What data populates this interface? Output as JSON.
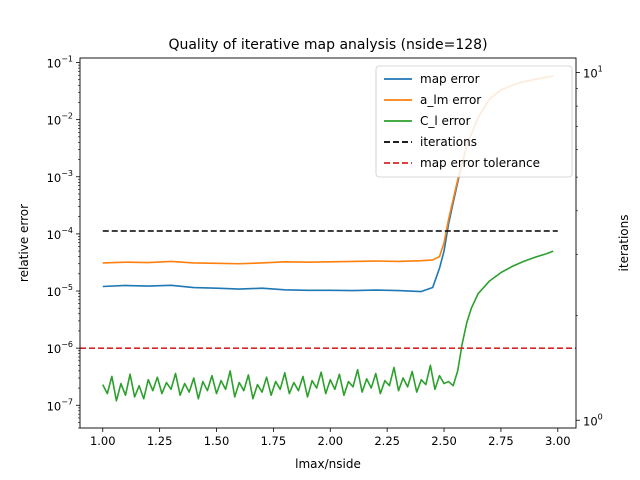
{
  "chart_data": {
    "type": "line",
    "title": "Quality of iterative map analysis (nside=128)",
    "xlabel": "lmax/nside",
    "ylabel": "relative error",
    "y2label": "iterations",
    "xlim": [
      0.9,
      3.08
    ],
    "ylim": [
      4e-08,
      0.12
    ],
    "y2lim": [
      0.95,
      11
    ],
    "yscale": "log",
    "y2scale": "log",
    "xticks": [
      "1.00",
      "1.25",
      "1.50",
      "1.75",
      "2.00",
      "2.25",
      "2.50",
      "2.75",
      "3.00"
    ],
    "yticks": [
      {
        "base": "10",
        "exp": "−7"
      },
      {
        "base": "10",
        "exp": "−6"
      },
      {
        "base": "10",
        "exp": "−5"
      },
      {
        "base": "10",
        "exp": "−4"
      },
      {
        "base": "10",
        "exp": "−3"
      },
      {
        "base": "10",
        "exp": "−2"
      },
      {
        "base": "10",
        "exp": "−1"
      }
    ],
    "y2ticks": [
      {
        "base": "10",
        "exp": "0"
      },
      {
        "base": "10",
        "exp": "1"
      }
    ],
    "grid": false,
    "legend_position": "upper-right",
    "legend_entries": [
      "map error",
      "a_lm error",
      "C_l error",
      "iterations",
      "map error tolerance"
    ],
    "series": [
      {
        "name": "map error",
        "color": "#1f77b4",
        "x": [
          1.0,
          1.1,
          1.2,
          1.3,
          1.4,
          1.5,
          1.6,
          1.7,
          1.8,
          1.9,
          2.0,
          2.1,
          2.2,
          2.3,
          2.4,
          2.45,
          2.48,
          2.5,
          2.52,
          2.54,
          2.57,
          2.6,
          2.65,
          2.7,
          2.75,
          2.8,
          2.85,
          2.9,
          2.95,
          2.98
        ],
        "y": [
          1.2e-05,
          1.25e-05,
          1.22e-05,
          1.26e-05,
          1.15e-05,
          1.12e-05,
          1.08e-05,
          1.12e-05,
          1.05e-05,
          1.03e-05,
          1.03e-05,
          1.02e-05,
          1.04e-05,
          1.02e-05,
          9.8e-06,
          1.15e-05,
          2.5e-05,
          5e-05,
          0.00015,
          0.00035,
          0.0012,
          0.0035,
          0.011,
          0.023,
          0.033,
          0.04,
          0.046,
          0.051,
          0.055,
          0.058
        ]
      },
      {
        "name": "a_lm error",
        "color": "#ff7f0e",
        "x": [
          1.0,
          1.1,
          1.2,
          1.3,
          1.4,
          1.5,
          1.6,
          1.7,
          1.8,
          1.9,
          2.0,
          2.1,
          2.2,
          2.3,
          2.4,
          2.45,
          2.48,
          2.5,
          2.52,
          2.54,
          2.57,
          2.6,
          2.65,
          2.7,
          2.75,
          2.8,
          2.85,
          2.9,
          2.95,
          2.98
        ],
        "y": [
          3.1e-05,
          3.2e-05,
          3.15e-05,
          3.3e-05,
          3.1e-05,
          3.05e-05,
          3e-05,
          3.1e-05,
          3.25e-05,
          3.2e-05,
          3.25e-05,
          3.3e-05,
          3.35e-05,
          3.3e-05,
          3.4e-05,
          3.5e-05,
          4e-05,
          7e-05,
          0.00018,
          0.0004,
          0.0013,
          0.0036,
          0.011,
          0.023,
          0.033,
          0.04,
          0.046,
          0.051,
          0.055,
          0.058
        ]
      },
      {
        "name": "C_l error",
        "color": "#2ca02c",
        "x": [
          1.0,
          1.02,
          1.04,
          1.06,
          1.08,
          1.1,
          1.12,
          1.14,
          1.16,
          1.18,
          1.2,
          1.22,
          1.24,
          1.26,
          1.28,
          1.3,
          1.32,
          1.34,
          1.36,
          1.38,
          1.4,
          1.42,
          1.44,
          1.46,
          1.48,
          1.5,
          1.52,
          1.54,
          1.56,
          1.58,
          1.6,
          1.62,
          1.64,
          1.66,
          1.68,
          1.7,
          1.72,
          1.74,
          1.76,
          1.78,
          1.8,
          1.82,
          1.84,
          1.86,
          1.88,
          1.9,
          1.92,
          1.94,
          1.96,
          1.98,
          2.0,
          2.02,
          2.04,
          2.06,
          2.08,
          2.1,
          2.12,
          2.14,
          2.16,
          2.18,
          2.2,
          2.22,
          2.24,
          2.26,
          2.28,
          2.3,
          2.32,
          2.34,
          2.36,
          2.38,
          2.4,
          2.42,
          2.44,
          2.46,
          2.48,
          2.5,
          2.52,
          2.54,
          2.56,
          2.58,
          2.6,
          2.62,
          2.65,
          2.7,
          2.75,
          2.8,
          2.85,
          2.9,
          2.95,
          2.98
        ],
        "y": [
          2.3e-07,
          1.6e-07,
          3.2e-07,
          1.2e-07,
          2.4e-07,
          1.5e-07,
          3.5e-07,
          1.4e-07,
          2.2e-07,
          1.3e-07,
          2.8e-07,
          1.8e-07,
          3.1e-07,
          1.6e-07,
          2.5e-07,
          1.9e-07,
          3.6e-07,
          1.5e-07,
          2.4e-07,
          1.7e-07,
          3e-07,
          1.3e-07,
          2.6e-07,
          1.8e-07,
          3.3e-07,
          1.6e-07,
          2.7e-07,
          1.9e-07,
          4e-07,
          1.4e-07,
          2.5e-07,
          1.8e-07,
          3.4e-07,
          1.3e-07,
          2.3e-07,
          1.7e-07,
          3.1e-07,
          1.5e-07,
          2.6e-07,
          1.9e-07,
          3.7e-07,
          1.6e-07,
          2.5e-07,
          1.8e-07,
          3.2e-07,
          1.4e-07,
          2.7e-07,
          2e-07,
          3.8e-07,
          1.6e-07,
          2.8e-07,
          1.9e-07,
          3.5e-07,
          1.5e-07,
          2.6e-07,
          2.1e-07,
          4.2e-07,
          1.7e-07,
          2.9e-07,
          2e-07,
          3.6e-07,
          1.6e-07,
          2.7e-07,
          2.2e-07,
          4.6e-07,
          1.8e-07,
          3e-07,
          2.1e-07,
          3.9e-07,
          1.7e-07,
          2.8e-07,
          2.3e-07,
          5e-07,
          1.9e-07,
          3.3e-07,
          2.4e-07,
          2.6e-07,
          2.2e-07,
          4e-07,
          1.2e-06,
          2.8e-06,
          5e-06,
          9e-06,
          1.5e-05,
          2.1e-05,
          2.7e-05,
          3.3e-05,
          3.9e-05,
          4.5e-05,
          5e-05
        ]
      },
      {
        "name": "iterations",
        "color": "#000000",
        "style": "dashed",
        "axis": "secondary",
        "x": [
          1.0,
          3.0
        ],
        "y": [
          3.5,
          3.5
        ]
      },
      {
        "name": "map error tolerance",
        "color": "#d62728",
        "style": "dashed",
        "x": [
          0.9,
          3.08
        ],
        "y": [
          1e-06,
          1e-06
        ]
      }
    ]
  }
}
